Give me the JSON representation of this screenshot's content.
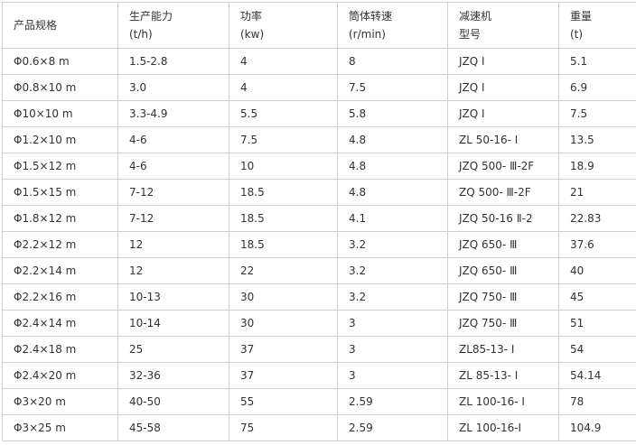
{
  "colors": {
    "background": "#ffffff",
    "border": "#d0d0d0",
    "text": "#333333"
  },
  "chart_data": {
    "type": "table",
    "columns": [
      {
        "line1": "产品规格",
        "line2": ""
      },
      {
        "line1": "生产能力",
        "line2": "(t/h)"
      },
      {
        "line1": "功率",
        "line2": "(kw)"
      },
      {
        "line1": "筒体转速",
        "line2": "(r/min)"
      },
      {
        "line1": "减速机",
        "line2": "型号"
      },
      {
        "line1": "重量",
        "line2": "(t)"
      }
    ],
    "rows": [
      [
        "Φ0.6×8 m",
        "1.5-2.8",
        "4",
        "8",
        "JZQ Ⅰ",
        "5.1"
      ],
      [
        "Φ0.8×10 m",
        "3.0",
        "4",
        "7.5",
        "JZQ Ⅰ",
        "6.9"
      ],
      [
        "Φ10×10 m",
        "3.3-4.9",
        "5.5",
        "5.8",
        "JZQ Ⅰ",
        "7.5"
      ],
      [
        "Φ1.2×10 m",
        "4-6",
        "7.5",
        "4.8",
        "ZL 50-16- Ⅰ",
        "13.5"
      ],
      [
        "Φ1.5×12 m",
        "4-6",
        "10",
        "4.8",
        "JZQ 500- Ⅲ-2F",
        "18.9"
      ],
      [
        "Φ1.5×15 m",
        "7-12",
        "18.5",
        "4.8",
        "ZQ 500- Ⅲ-2F",
        "21"
      ],
      [
        "Φ1.8×12 m",
        "7-12",
        "18.5",
        "4.1",
        "JZQ 50-16 Ⅱ-2",
        "22.83"
      ],
      [
        "Φ2.2×12 m",
        "12",
        "18.5",
        "3.2",
        "JZQ 650- Ⅲ",
        "37.6"
      ],
      [
        "Φ2.2×14 m",
        "12",
        "22",
        "3.2",
        "JZQ 650- Ⅲ",
        "40"
      ],
      [
        "Φ2.2×16 m",
        "10-13",
        "30",
        "3.2",
        "JZQ 750- Ⅲ",
        "45"
      ],
      [
        "Φ2.4×14 m",
        "10-14",
        "30",
        "3",
        "JZQ 750- Ⅲ",
        "51"
      ],
      [
        "Φ2.4×18 m",
        "25",
        "37",
        "3",
        "ZL85-13- Ⅰ",
        "54"
      ],
      [
        "Φ2.4×20 m",
        "32-36",
        "37",
        "3",
        "ZL 85-13- Ⅰ",
        "54.14"
      ],
      [
        "Φ3×20 m",
        "40-50",
        "55",
        "2.59",
        "ZL 100-16- Ⅰ",
        "78"
      ],
      [
        "Φ3×25 m",
        "45-58",
        "75",
        "2.59",
        "ZL 100-16-I",
        "104.9"
      ]
    ]
  }
}
